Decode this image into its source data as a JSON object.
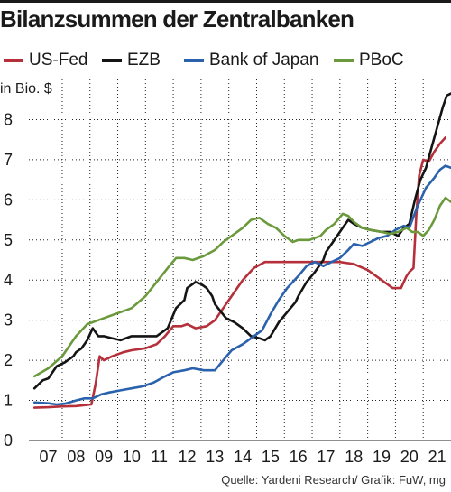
{
  "chart_data": {
    "type": "line",
    "title": "Bilanzsummen der Zentralbanken",
    "ylabel": "in Bio. $",
    "xlabel": "",
    "ylim": [
      0,
      9
    ],
    "xlim": [
      2006.3,
      2021.5
    ],
    "grid": true,
    "legend_position": "top",
    "yticks": [
      0,
      1,
      2,
      3,
      4,
      5,
      6,
      7,
      8
    ],
    "ytick_labels": [
      "0",
      "1",
      "2",
      "3",
      "4",
      "5",
      "6",
      "7",
      "8"
    ],
    "xticks": [
      2007,
      2008,
      2009,
      2010,
      2011,
      2012,
      2013,
      2014,
      2015,
      2016,
      2017,
      2018,
      2019,
      2020,
      2021
    ],
    "xtick_labels": [
      "07",
      "08",
      "09",
      "10",
      "11",
      "12",
      "13",
      "14",
      "15",
      "16",
      "17",
      "18",
      "19",
      "20",
      "21"
    ],
    "series": [
      {
        "name": "US-Fed",
        "color": "#b5303a",
        "points": [
          [
            2006.5,
            0.82
          ],
          [
            2007.0,
            0.83
          ],
          [
            2007.5,
            0.85
          ],
          [
            2008.0,
            0.86
          ],
          [
            2008.55,
            0.9
          ],
          [
            2008.7,
            1.4
          ],
          [
            2008.85,
            2.1
          ],
          [
            2009.0,
            2.0
          ],
          [
            2009.3,
            2.1
          ],
          [
            2009.7,
            2.2
          ],
          [
            2010.0,
            2.25
          ],
          [
            2010.5,
            2.3
          ],
          [
            2010.9,
            2.4
          ],
          [
            2011.2,
            2.6
          ],
          [
            2011.5,
            2.85
          ],
          [
            2011.8,
            2.85
          ],
          [
            2012.0,
            2.9
          ],
          [
            2012.3,
            2.8
          ],
          [
            2012.7,
            2.85
          ],
          [
            2013.0,
            3.0
          ],
          [
            2013.3,
            3.3
          ],
          [
            2013.7,
            3.7
          ],
          [
            2014.0,
            4.0
          ],
          [
            2014.4,
            4.3
          ],
          [
            2014.8,
            4.45
          ],
          [
            2015.5,
            4.45
          ],
          [
            2016.0,
            4.45
          ],
          [
            2016.5,
            4.45
          ],
          [
            2017.0,
            4.45
          ],
          [
            2017.5,
            4.45
          ],
          [
            2018.0,
            4.4
          ],
          [
            2018.5,
            4.25
          ],
          [
            2019.0,
            4.0
          ],
          [
            2019.4,
            3.8
          ],
          [
            2019.7,
            3.8
          ],
          [
            2019.9,
            4.1
          ],
          [
            2020.0,
            4.2
          ],
          [
            2020.15,
            4.3
          ],
          [
            2020.25,
            5.6
          ],
          [
            2020.35,
            6.6
          ],
          [
            2020.5,
            7.0
          ],
          [
            2020.7,
            6.95
          ],
          [
            2020.9,
            7.2
          ],
          [
            2021.1,
            7.4
          ],
          [
            2021.3,
            7.55
          ]
        ]
      },
      {
        "name": "EZB",
        "color": "#141414",
        "points": [
          [
            2006.5,
            1.3
          ],
          [
            2006.8,
            1.5
          ],
          [
            2007.0,
            1.55
          ],
          [
            2007.3,
            1.85
          ],
          [
            2007.6,
            1.95
          ],
          [
            2007.9,
            2.1
          ],
          [
            2008.0,
            2.2
          ],
          [
            2008.2,
            2.3
          ],
          [
            2008.4,
            2.5
          ],
          [
            2008.6,
            2.8
          ],
          [
            2008.8,
            2.6
          ],
          [
            2009.0,
            2.6
          ],
          [
            2009.3,
            2.55
          ],
          [
            2009.6,
            2.5
          ],
          [
            2010.0,
            2.6
          ],
          [
            2010.5,
            2.6
          ],
          [
            2010.9,
            2.6
          ],
          [
            2011.3,
            2.8
          ],
          [
            2011.6,
            3.3
          ],
          [
            2011.9,
            3.5
          ],
          [
            2012.0,
            3.8
          ],
          [
            2012.3,
            3.95
          ],
          [
            2012.5,
            3.9
          ],
          [
            2012.7,
            3.8
          ],
          [
            2012.9,
            3.6
          ],
          [
            2013.0,
            3.4
          ],
          [
            2013.4,
            3.05
          ],
          [
            2013.7,
            2.95
          ],
          [
            2014.0,
            2.8
          ],
          [
            2014.3,
            2.6
          ],
          [
            2014.6,
            2.55
          ],
          [
            2014.8,
            2.5
          ],
          [
            2015.0,
            2.6
          ],
          [
            2015.3,
            2.95
          ],
          [
            2015.6,
            3.2
          ],
          [
            2015.9,
            3.45
          ],
          [
            2016.0,
            3.6
          ],
          [
            2016.3,
            3.95
          ],
          [
            2016.6,
            4.2
          ],
          [
            2016.9,
            4.5
          ],
          [
            2017.0,
            4.7
          ],
          [
            2017.3,
            5.0
          ],
          [
            2017.6,
            5.3
          ],
          [
            2017.8,
            5.5
          ],
          [
            2018.0,
            5.4
          ],
          [
            2018.3,
            5.3
          ],
          [
            2018.6,
            5.25
          ],
          [
            2019.0,
            5.2
          ],
          [
            2019.3,
            5.2
          ],
          [
            2019.6,
            5.1
          ],
          [
            2019.8,
            5.3
          ],
          [
            2020.0,
            5.4
          ],
          [
            2020.2,
            6.0
          ],
          [
            2020.4,
            6.5
          ],
          [
            2020.6,
            6.8
          ],
          [
            2020.8,
            7.3
          ],
          [
            2021.0,
            7.8
          ],
          [
            2021.2,
            8.3
          ],
          [
            2021.35,
            8.6
          ],
          [
            2021.5,
            8.65
          ]
        ]
      },
      {
        "name": "Bank of Japan",
        "color": "#2b62ad",
        "points": [
          [
            2006.5,
            0.95
          ],
          [
            2007.0,
            0.93
          ],
          [
            2007.3,
            0.9
          ],
          [
            2007.6,
            0.92
          ],
          [
            2008.0,
            1.0
          ],
          [
            2008.3,
            1.05
          ],
          [
            2008.6,
            1.05
          ],
          [
            2008.9,
            1.15
          ],
          [
            2009.2,
            1.2
          ],
          [
            2009.6,
            1.25
          ],
          [
            2010.0,
            1.3
          ],
          [
            2010.4,
            1.35
          ],
          [
            2010.8,
            1.45
          ],
          [
            2011.2,
            1.6
          ],
          [
            2011.5,
            1.7
          ],
          [
            2011.9,
            1.75
          ],
          [
            2012.2,
            1.8
          ],
          [
            2012.6,
            1.75
          ],
          [
            2013.0,
            1.75
          ],
          [
            2013.3,
            2.0
          ],
          [
            2013.6,
            2.25
          ],
          [
            2014.0,
            2.4
          ],
          [
            2014.3,
            2.55
          ],
          [
            2014.7,
            2.75
          ],
          [
            2015.0,
            3.15
          ],
          [
            2015.3,
            3.5
          ],
          [
            2015.6,
            3.8
          ],
          [
            2016.0,
            4.1
          ],
          [
            2016.3,
            4.35
          ],
          [
            2016.6,
            4.45
          ],
          [
            2016.9,
            4.35
          ],
          [
            2017.2,
            4.45
          ],
          [
            2017.5,
            4.55
          ],
          [
            2017.8,
            4.75
          ],
          [
            2018.0,
            4.9
          ],
          [
            2018.3,
            4.85
          ],
          [
            2018.6,
            4.95
          ],
          [
            2018.9,
            5.05
          ],
          [
            2019.2,
            5.1
          ],
          [
            2019.5,
            5.25
          ],
          [
            2019.8,
            5.35
          ],
          [
            2020.0,
            5.3
          ],
          [
            2020.3,
            5.85
          ],
          [
            2020.6,
            6.3
          ],
          [
            2020.9,
            6.55
          ],
          [
            2021.1,
            6.75
          ],
          [
            2021.3,
            6.85
          ],
          [
            2021.5,
            6.8
          ]
        ]
      },
      {
        "name": "PBoC",
        "color": "#6b9a3c",
        "points": [
          [
            2006.5,
            1.6
          ],
          [
            2007.0,
            1.8
          ],
          [
            2007.5,
            2.1
          ],
          [
            2008.0,
            2.6
          ],
          [
            2008.4,
            2.9
          ],
          [
            2008.8,
            3.0
          ],
          [
            2009.2,
            3.1
          ],
          [
            2009.6,
            3.2
          ],
          [
            2010.0,
            3.3
          ],
          [
            2010.5,
            3.6
          ],
          [
            2010.9,
            3.95
          ],
          [
            2011.3,
            4.3
          ],
          [
            2011.6,
            4.55
          ],
          [
            2011.9,
            4.55
          ],
          [
            2012.2,
            4.5
          ],
          [
            2012.6,
            4.6
          ],
          [
            2013.0,
            4.75
          ],
          [
            2013.3,
            4.95
          ],
          [
            2013.6,
            5.1
          ],
          [
            2014.0,
            5.3
          ],
          [
            2014.3,
            5.5
          ],
          [
            2014.6,
            5.55
          ],
          [
            2014.9,
            5.4
          ],
          [
            2015.2,
            5.3
          ],
          [
            2015.5,
            5.1
          ],
          [
            2015.8,
            4.95
          ],
          [
            2016.0,
            5.0
          ],
          [
            2016.4,
            5.0
          ],
          [
            2016.8,
            5.1
          ],
          [
            2017.0,
            5.25
          ],
          [
            2017.3,
            5.4
          ],
          [
            2017.6,
            5.65
          ],
          [
            2017.8,
            5.6
          ],
          [
            2018.0,
            5.45
          ],
          [
            2018.3,
            5.3
          ],
          [
            2018.6,
            5.25
          ],
          [
            2019.0,
            5.2
          ],
          [
            2019.3,
            5.15
          ],
          [
            2019.6,
            5.2
          ],
          [
            2019.9,
            5.3
          ],
          [
            2020.1,
            5.2
          ],
          [
            2020.3,
            5.2
          ],
          [
            2020.5,
            5.1
          ],
          [
            2020.7,
            5.25
          ],
          [
            2020.9,
            5.5
          ],
          [
            2021.1,
            5.85
          ],
          [
            2021.3,
            6.05
          ],
          [
            2021.5,
            5.95
          ]
        ]
      }
    ]
  },
  "source": "Quelle: Yardeni Research/ Grafik: FuW, mg"
}
